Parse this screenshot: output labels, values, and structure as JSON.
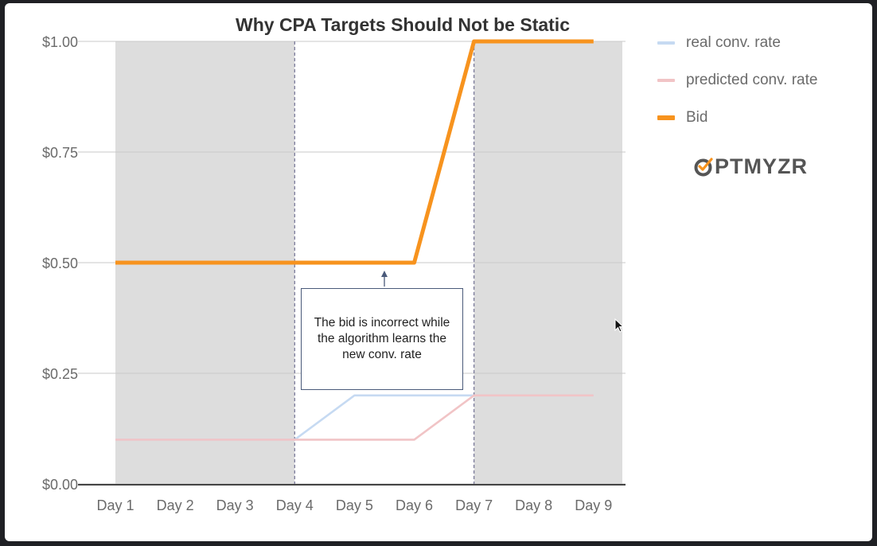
{
  "title": "Why CPA Targets Should Not be Static",
  "legend": [
    {
      "label": "real conv. rate",
      "color": "#c6daf2"
    },
    {
      "label": "predicted conv. rate",
      "color": "#f1c4c6"
    },
    {
      "label": "Bid",
      "color": "#f7931e"
    }
  ],
  "brand": {
    "o_letter": "O",
    "rest": "PTMYZR",
    "color": "#555555",
    "accent": "#f7931e"
  },
  "annotation": {
    "text": "The bid is incorrect while the algorithm learns the new conv. rate"
  },
  "chart_data": {
    "type": "line",
    "title": "Why CPA Targets Should Not be Static",
    "categories": [
      "Day 1",
      "Day 2",
      "Day 3",
      "Day 4",
      "Day 5",
      "Day 6",
      "Day 7",
      "Day 8",
      "Day 9"
    ],
    "yticks": [
      "$0.00",
      "$0.25",
      "$0.50",
      "$0.75",
      "$1.00"
    ],
    "ylim": [
      0,
      1
    ],
    "grid": true,
    "legend_position": "right",
    "series": [
      {
        "name": "real conv. rate",
        "values": [
          0.1,
          0.1,
          0.1,
          0.1,
          0.2,
          0.2,
          0.2,
          0.2,
          0.2
        ],
        "color": "#c6daf2"
      },
      {
        "name": "predicted conv. rate",
        "values": [
          0.1,
          0.1,
          0.1,
          0.1,
          0.1,
          0.1,
          0.2,
          0.2,
          0.2
        ],
        "color": "#f1c4c6"
      },
      {
        "name": "Bid",
        "values": [
          0.5,
          0.5,
          0.5,
          0.5,
          0.5,
          0.5,
          1.0,
          1.0,
          1.0
        ],
        "color": "#f7931e"
      }
    ],
    "shaded_regions": [
      {
        "from": "Day 1",
        "to": "Day 4",
        "color": "#dddddd"
      },
      {
        "from": "Day 7",
        "to": "Day 9",
        "color": "#dddddd"
      }
    ],
    "markers": [
      "Day 4",
      "Day 7"
    ],
    "annotation_at": {
      "category": "Day 6",
      "value": 0.5
    }
  }
}
